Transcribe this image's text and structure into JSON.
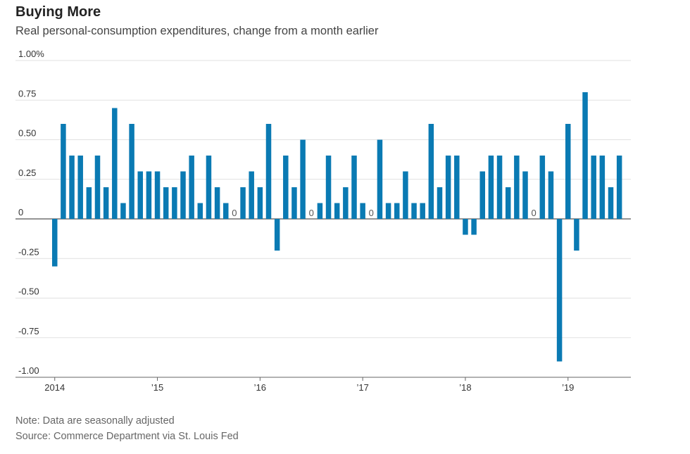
{
  "header": {
    "title": "Buying More",
    "subtitle": "Real personal-consumption expenditures, change from a month earlier"
  },
  "footer": {
    "note": "Note: Data are seasonally adjusted",
    "source": "Source: Commerce Department via St. Louis Fed"
  },
  "chart_data": {
    "type": "bar",
    "title": "Buying More",
    "subtitle": "Real personal-consumption expenditures, change from a month earlier",
    "ylim": [
      -1.0,
      1.0
    ],
    "yticks": [
      1.0,
      0.75,
      0.5,
      0.25,
      0,
      -0.25,
      -0.5,
      -0.75,
      -1.0
    ],
    "ytick_labels": [
      "1.00%",
      "0.75",
      "0.50",
      "0.25",
      "0",
      "-0.25",
      "-0.50",
      "-0.75",
      "-1.00"
    ],
    "xtick_labels": [
      "2014",
      "’15",
      "’16",
      "’17",
      "’18",
      "’19"
    ],
    "bar_color": "#0a7ab3",
    "grid": true,
    "values": [
      -0.3,
      0.6,
      0.4,
      0.4,
      0.2,
      0.4,
      0.2,
      0.7,
      0.1,
      0.6,
      0.3,
      0.3,
      0.3,
      0.2,
      0.2,
      0.3,
      0.4,
      0.1,
      0.4,
      0.2,
      0.1,
      0,
      0.2,
      0.3,
      0.2,
      0.6,
      -0.2,
      0.4,
      0.2,
      0.5,
      0,
      0.1,
      0.4,
      0.1,
      0.2,
      0.4,
      0.1,
      0,
      0.5,
      0.1,
      0.1,
      0.3,
      0.1,
      0.1,
      0.6,
      0.2,
      0.4,
      0.4,
      -0.1,
      -0.1,
      0.3,
      0.4,
      0.4,
      0.2,
      0.4,
      0.3,
      0,
      0.4,
      0.3,
      -0.9,
      0.6,
      -0.2,
      0.8,
      0.4,
      0.4,
      0.2,
      0.4
    ],
    "zero_labels": [
      "0",
      "0",
      "0",
      "0"
    ]
  }
}
